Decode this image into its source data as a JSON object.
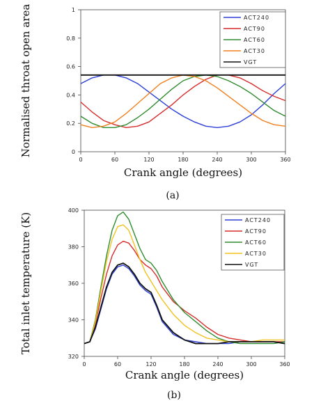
{
  "chart_data": [
    {
      "id": "a",
      "type": "line",
      "caption": "(a)",
      "xlabel": "Crank angle (degrees)",
      "ylabel": "Normalised throat open area",
      "xlim": [
        0,
        360
      ],
      "ylim": [
        0,
        1
      ],
      "xticks": [
        0,
        60,
        120,
        180,
        240,
        300,
        360
      ],
      "yticks": [
        0,
        0.2,
        0.4,
        0.6,
        0.8,
        1
      ],
      "ytick_labels": [
        "0",
        "0.2",
        "0.4",
        "0.6",
        "0.8",
        "1"
      ],
      "grid": false,
      "legend_position": "top-right",
      "series": [
        {
          "name": "ACT240",
          "color": "#2b3fd6",
          "x": [
            0,
            20,
            40,
            60,
            80,
            100,
            120,
            140,
            160,
            180,
            200,
            220,
            240,
            260,
            280,
            300,
            320,
            340,
            360
          ],
          "y": [
            0.48,
            0.52,
            0.54,
            0.54,
            0.52,
            0.48,
            0.42,
            0.36,
            0.3,
            0.25,
            0.21,
            0.18,
            0.17,
            0.18,
            0.21,
            0.26,
            0.33,
            0.41,
            0.48
          ]
        },
        {
          "name": "ACT90",
          "color": "#d62b2b",
          "x": [
            0,
            20,
            40,
            60,
            80,
            100,
            120,
            140,
            160,
            180,
            200,
            220,
            240,
            260,
            280,
            300,
            320,
            340,
            360
          ],
          "y": [
            0.35,
            0.28,
            0.22,
            0.19,
            0.17,
            0.18,
            0.21,
            0.27,
            0.33,
            0.4,
            0.46,
            0.51,
            0.54,
            0.54,
            0.52,
            0.48,
            0.43,
            0.39,
            0.36
          ]
        },
        {
          "name": "ACT60",
          "color": "#2e8b2e",
          "x": [
            0,
            20,
            40,
            60,
            80,
            100,
            120,
            140,
            160,
            180,
            200,
            220,
            240,
            260,
            280,
            300,
            320,
            340,
            360
          ],
          "y": [
            0.25,
            0.2,
            0.17,
            0.17,
            0.19,
            0.24,
            0.3,
            0.37,
            0.44,
            0.5,
            0.53,
            0.54,
            0.53,
            0.5,
            0.46,
            0.41,
            0.35,
            0.29,
            0.25
          ]
        },
        {
          "name": "ACT30",
          "color": "#f07f1e",
          "x": [
            0,
            20,
            40,
            60,
            80,
            100,
            120,
            140,
            160,
            180,
            200,
            220,
            240,
            260,
            280,
            300,
            320,
            340,
            360
          ],
          "y": [
            0.19,
            0.17,
            0.18,
            0.21,
            0.27,
            0.34,
            0.41,
            0.48,
            0.52,
            0.54,
            0.53,
            0.5,
            0.45,
            0.39,
            0.33,
            0.27,
            0.22,
            0.19,
            0.18
          ]
        },
        {
          "name": "VGT",
          "color": "#111111",
          "x": [
            0,
            360
          ],
          "y": [
            0.54,
            0.54
          ]
        }
      ]
    },
    {
      "id": "b",
      "type": "line",
      "caption": "(b)",
      "xlabel": "Crank angle (degrees)",
      "ylabel": "Total inlet temperature (K)",
      "xlim": [
        0,
        360
      ],
      "ylim": [
        320,
        400
      ],
      "xticks": [
        0,
        60,
        120,
        180,
        240,
        300,
        360
      ],
      "yticks": [
        320,
        340,
        360,
        380,
        400
      ],
      "ytick_labels": [
        "320",
        "340",
        "360",
        "380",
        "400"
      ],
      "grid": false,
      "legend_position": "top-right",
      "series": [
        {
          "name": "ACT240",
          "color": "#2b3fd6",
          "x": [
            0,
            10,
            20,
            30,
            40,
            50,
            60,
            70,
            80,
            90,
            100,
            110,
            120,
            130,
            140,
            160,
            180,
            200,
            220,
            240,
            260,
            280,
            300,
            320,
            340,
            360
          ],
          "y": [
            327,
            328,
            335,
            346,
            357,
            365,
            369,
            370,
            368,
            364,
            359,
            356,
            354,
            347,
            339,
            332,
            329,
            328,
            327,
            327,
            327,
            328,
            328,
            328,
            328,
            327
          ]
        },
        {
          "name": "ACT90",
          "color": "#d62b2b",
          "x": [
            0,
            10,
            20,
            30,
            40,
            50,
            60,
            70,
            80,
            90,
            100,
            110,
            120,
            130,
            140,
            160,
            180,
            200,
            220,
            240,
            260,
            280,
            300,
            320,
            340,
            360
          ],
          "y": [
            327,
            328,
            338,
            352,
            365,
            375,
            381,
            383,
            382,
            378,
            373,
            370,
            368,
            364,
            358,
            350,
            345,
            341,
            336,
            332,
            330,
            329,
            328,
            328,
            328,
            328
          ]
        },
        {
          "name": "ACT60",
          "color": "#2e8b2e",
          "x": [
            0,
            10,
            20,
            30,
            40,
            50,
            60,
            70,
            80,
            90,
            100,
            110,
            120,
            130,
            140,
            160,
            180,
            200,
            220,
            240,
            260,
            280,
            300,
            320,
            340,
            360
          ],
          "y": [
            327,
            328,
            340,
            358,
            375,
            389,
            397,
            399,
            395,
            387,
            379,
            373,
            371,
            367,
            361,
            351,
            344,
            339,
            334,
            330,
            328,
            327,
            327,
            327,
            327,
            328
          ]
        },
        {
          "name": "ACT30",
          "color": "#f0c21e",
          "x": [
            0,
            10,
            20,
            30,
            40,
            50,
            60,
            70,
            80,
            90,
            100,
            110,
            120,
            130,
            140,
            160,
            180,
            200,
            220,
            240,
            260,
            280,
            300,
            320,
            340,
            360
          ],
          "y": [
            327,
            328,
            339,
            356,
            372,
            384,
            391,
            392,
            389,
            381,
            373,
            366,
            361,
            356,
            351,
            343,
            337,
            333,
            330,
            329,
            328,
            328,
            328,
            329,
            329,
            329
          ]
        },
        {
          "name": "VGT",
          "color": "#111111",
          "x": [
            0,
            10,
            20,
            30,
            40,
            50,
            60,
            70,
            80,
            90,
            100,
            110,
            120,
            130,
            140,
            160,
            180,
            200,
            220,
            240,
            260,
            280,
            300,
            320,
            340,
            360
          ],
          "y": [
            327,
            328,
            336,
            347,
            358,
            366,
            370,
            371,
            369,
            365,
            360,
            357,
            355,
            348,
            340,
            333,
            329,
            327,
            327,
            327,
            328,
            328,
            328,
            328,
            328,
            327
          ]
        }
      ]
    }
  ]
}
